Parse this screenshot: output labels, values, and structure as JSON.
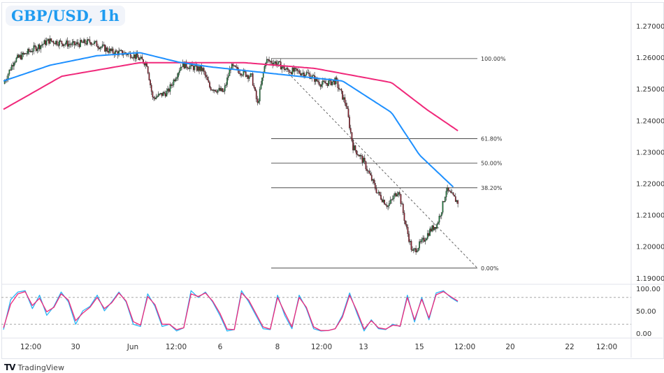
{
  "title": "GBP/USD, 1h",
  "brand": {
    "logo_text": "TradingView"
  },
  "colors": {
    "title": "#1e9bf0",
    "up": "#1b7a3a",
    "down": "#8a1c2a",
    "ma_fast": "#1e90ff",
    "ma_slow": "#f0287a",
    "stoch_k": "#2ab4f5",
    "stoch_d": "#f0287a"
  },
  "chart_data": {
    "type": "candlestick",
    "price_axis": {
      "ticks": [
        "1.27000",
        "1.26000",
        "1.25000",
        "1.24000",
        "1.23000",
        "1.22000",
        "1.21000",
        "1.20000",
        "1.19000"
      ],
      "range": [
        1.19,
        1.27
      ]
    },
    "time_axis": {
      "ticks": [
        "12:00",
        "30",
        "Jun",
        "12:00",
        "6",
        "8",
        "12:00",
        "13",
        "15",
        "12:00",
        "20",
        "22",
        "12:00"
      ]
    },
    "price_path": [
      [
        0,
        1.2516
      ],
      [
        9,
        1.259
      ],
      [
        25,
        1.2625
      ],
      [
        39,
        1.2653
      ],
      [
        60,
        1.264
      ],
      [
        75,
        1.265
      ],
      [
        93,
        1.2617
      ],
      [
        110,
        1.261
      ],
      [
        123,
        1.258
      ],
      [
        128,
        1.247
      ],
      [
        141,
        1.249
      ],
      [
        153,
        1.2578
      ],
      [
        171,
        1.256
      ],
      [
        177,
        1.2505
      ],
      [
        189,
        1.249
      ],
      [
        195,
        1.257
      ],
      [
        213,
        1.2538
      ],
      [
        218,
        1.245
      ],
      [
        225,
        1.259
      ],
      [
        234,
        1.2583
      ],
      [
        243,
        1.256
      ],
      [
        261,
        1.2548
      ],
      [
        273,
        1.2515
      ],
      [
        285,
        1.2525
      ],
      [
        294,
        1.245
      ],
      [
        300,
        1.2316
      ],
      [
        309,
        1.227
      ],
      [
        321,
        1.217
      ],
      [
        330,
        1.2128
      ],
      [
        339,
        1.218
      ],
      [
        345,
        1.207
      ],
      [
        351,
        1.198
      ],
      [
        360,
        1.2017
      ],
      [
        366,
        1.205
      ],
      [
        372,
        1.207
      ],
      [
        376,
        1.2117
      ],
      [
        380,
        1.218
      ],
      [
        390,
        1.214
      ]
    ],
    "ma_fast": [
      [
        0,
        1.2525
      ],
      [
        40,
        1.2575
      ],
      [
        80,
        1.2605
      ],
      [
        117,
        1.2615
      ],
      [
        150,
        1.2585
      ],
      [
        177,
        1.257
      ],
      [
        240,
        1.2545
      ],
      [
        291,
        1.2525
      ],
      [
        333,
        1.2425
      ],
      [
        357,
        1.229
      ],
      [
        387,
        1.2185
      ]
    ],
    "ma_slow": [
      [
        0,
        1.2435
      ],
      [
        50,
        1.254
      ],
      [
        117,
        1.2583
      ],
      [
        207,
        1.2583
      ],
      [
        267,
        1.2565
      ],
      [
        333,
        1.252
      ],
      [
        363,
        1.2435
      ],
      [
        390,
        1.2367
      ]
    ],
    "fibonacci": [
      {
        "label": "100.00%",
        "price": 1.2596
      },
      {
        "label": "61.80%",
        "price": 1.2342
      },
      {
        "label": "50.00%",
        "price": 1.2264
      },
      {
        "label": "38.20%",
        "price": 1.2186
      },
      {
        "label": "0.00%",
        "price": 1.1931
      }
    ],
    "oscillator": {
      "axis_ticks": [
        "100.00",
        "50.00",
        "0.00"
      ],
      "levels": [
        80,
        20
      ],
      "k": [
        8,
        75,
        92,
        95,
        55,
        85,
        40,
        60,
        92,
        70,
        20,
        50,
        60,
        85,
        50,
        70,
        92,
        70,
        20,
        15,
        88,
        60,
        15,
        20,
        5,
        12,
        95,
        80,
        92,
        70,
        40,
        5,
        8,
        95,
        70,
        40,
        10,
        8,
        85,
        40,
        10,
        85,
        55,
        10,
        5,
        6,
        10,
        40,
        90,
        45,
        5,
        30,
        10,
        8,
        20,
        15,
        85,
        25,
        80,
        30,
        90,
        95,
        80,
        70
      ],
      "d": [
        12,
        65,
        88,
        93,
        62,
        78,
        48,
        58,
        88,
        74,
        28,
        45,
        58,
        80,
        55,
        68,
        90,
        72,
        26,
        18,
        82,
        64,
        20,
        20,
        8,
        12,
        88,
        82,
        90,
        72,
        45,
        9,
        8,
        90,
        74,
        44,
        14,
        9,
        80,
        46,
        14,
        80,
        58,
        14,
        6,
        6,
        10,
        36,
        85,
        50,
        9,
        28,
        12,
        9,
        18,
        16,
        80,
        30,
        76,
        34,
        86,
        93,
        82,
        72
      ]
    }
  }
}
